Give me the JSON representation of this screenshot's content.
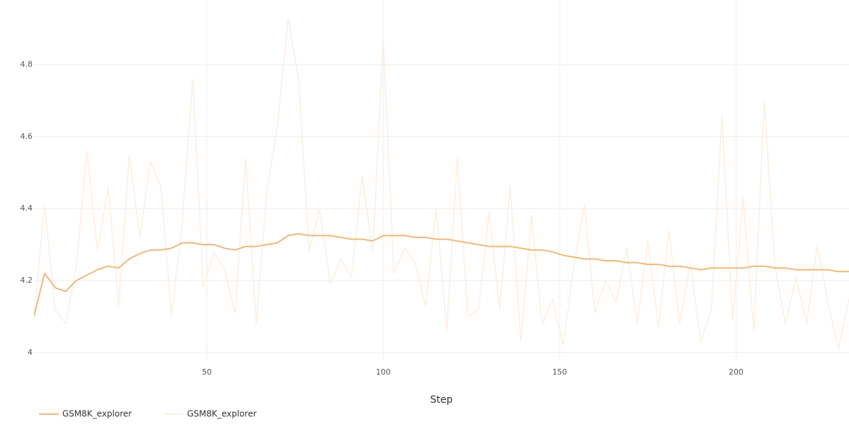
{
  "chart_data": {
    "type": "line",
    "x_label": "Step",
    "x": [
      1,
      4,
      7,
      10,
      13,
      16,
      19,
      22,
      25,
      28,
      31,
      34,
      37,
      40,
      43,
      46,
      49,
      52,
      55,
      58,
      61,
      64,
      67,
      70,
      73,
      76,
      79,
      82,
      85,
      88,
      91,
      94,
      97,
      100,
      103,
      106,
      109,
      112,
      115,
      118,
      121,
      124,
      127,
      130,
      133,
      136,
      139,
      142,
      145,
      148,
      151,
      154,
      157,
      160,
      163,
      166,
      169,
      172,
      175,
      178,
      181,
      184,
      187,
      190,
      193,
      196,
      199,
      202,
      205,
      208,
      211,
      214,
      217,
      220,
      223,
      226,
      229,
      232
    ],
    "series": [
      {
        "name": "GSM8K_explorer",
        "color": "#f0b87c",
        "width": 2,
        "values": [
          4.1,
          4.22,
          4.18,
          4.17,
          4.2,
          4.215,
          4.23,
          4.24,
          4.235,
          4.26,
          4.275,
          4.285,
          4.285,
          4.29,
          4.305,
          4.305,
          4.3,
          4.3,
          4.29,
          4.285,
          4.295,
          4.295,
          4.3,
          4.305,
          4.325,
          4.33,
          4.325,
          4.325,
          4.325,
          4.32,
          4.315,
          4.315,
          4.31,
          4.325,
          4.325,
          4.325,
          4.32,
          4.32,
          4.315,
          4.315,
          4.31,
          4.305,
          4.3,
          4.295,
          4.295,
          4.295,
          4.29,
          4.285,
          4.285,
          4.28,
          4.27,
          4.265,
          4.26,
          4.26,
          4.255,
          4.255,
          4.25,
          4.25,
          4.245,
          4.245,
          4.24,
          4.24,
          4.235,
          4.23,
          4.235,
          4.235,
          4.235,
          4.235,
          4.24,
          4.24,
          4.235,
          4.235,
          4.23,
          4.23,
          4.23,
          4.23,
          4.225,
          4.225
        ]
      },
      {
        "name": "GSM8K_explorer",
        "color": "#fdeee2",
        "width": 1.5,
        "values": [
          4.1,
          4.41,
          4.12,
          4.08,
          4.24,
          4.56,
          4.28,
          4.46,
          4.13,
          4.55,
          4.32,
          4.53,
          4.46,
          4.1,
          4.36,
          4.76,
          4.18,
          4.28,
          4.23,
          4.11,
          4.54,
          4.08,
          4.45,
          4.63,
          4.93,
          4.76,
          4.28,
          4.4,
          4.19,
          4.26,
          4.21,
          4.49,
          4.28,
          4.87,
          4.22,
          4.29,
          4.25,
          4.13,
          4.4,
          4.06,
          4.54,
          4.1,
          4.12,
          4.39,
          4.12,
          4.46,
          4.03,
          4.38,
          4.08,
          4.15,
          4.02,
          4.24,
          4.41,
          4.11,
          4.2,
          4.14,
          4.29,
          4.08,
          4.31,
          4.07,
          4.34,
          4.08,
          4.25,
          4.03,
          4.12,
          4.66,
          4.09,
          4.43,
          4.06,
          4.7,
          4.24,
          4.08,
          4.21,
          4.08,
          4.3,
          4.14,
          4.01,
          4.15
        ]
      }
    ],
    "xlim": [
      1,
      232
    ],
    "xticks": [
      50,
      100,
      150,
      200
    ],
    "ylim": [
      3.98,
      4.98
    ],
    "yticks": [
      4,
      4.2,
      4.4,
      4.6,
      4.8
    ],
    "grid": true,
    "legend": "bottom-left"
  }
}
